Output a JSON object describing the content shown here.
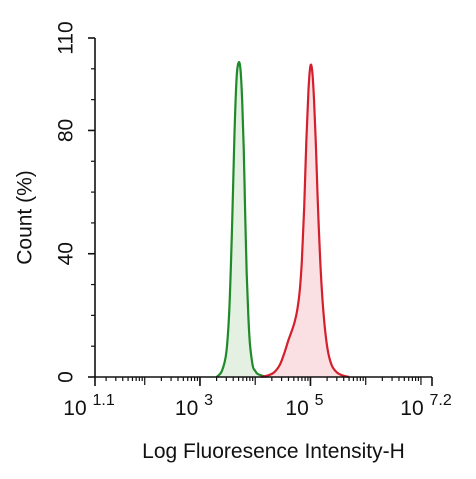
{
  "chart_data": {
    "type": "area",
    "title": "",
    "xlabel": "Log Fluoresence Intensity-H",
    "ylabel": "Count  (%)",
    "x_scale": "log",
    "xlim": [
      12.59,
      15848932
    ],
    "ylim": [
      0,
      110
    ],
    "x_ticks": [
      {
        "base": "10",
        "exp": "1.1",
        "value": 12.59
      },
      {
        "base": "10",
        "exp": "3",
        "value": 1000
      },
      {
        "base": "10",
        "exp": "5",
        "value": 100000
      },
      {
        "base": "10",
        "exp": "7.2",
        "value": 15848932
      }
    ],
    "y_ticks": [
      {
        "label": "0",
        "value": 0
      },
      {
        "label": "40",
        "value": 40
      },
      {
        "label": "80",
        "value": 80
      },
      {
        "label": "110",
        "value": 110
      }
    ],
    "grid": false,
    "legend": "none",
    "series": [
      {
        "line_color": "#1f8a2a",
        "fill_color": "#e4f0e1",
        "x": [
          2000,
          2500,
          3000,
          3400,
          3800,
          4200,
          4600,
          5000,
          5400,
          5800,
          6200,
          6600,
          7000,
          7500,
          8000,
          8600,
          9200,
          10000,
          11000,
          13000,
          16000
        ],
        "y": [
          0,
          2,
          8,
          22,
          48,
          78,
          97,
          102,
          100,
          90,
          74,
          52,
          34,
          20,
          11,
          6,
          3,
          2,
          1,
          0.5,
          0
        ]
      },
      {
        "line_color": "#d41f2c",
        "fill_color": "#fbe0e3",
        "x": [
          13000,
          17000,
          22000,
          28000,
          34000,
          40000,
          46000,
          52000,
          58000,
          64000,
          70000,
          77000,
          84000,
          92000,
          100000,
          108000,
          116000,
          125000,
          135000,
          150000,
          170000,
          200000,
          240000,
          300000,
          380000,
          500000
        ],
        "y": [
          0,
          0.5,
          1.5,
          4,
          8,
          12,
          15,
          18,
          22,
          28,
          38,
          55,
          76,
          93,
          101,
          99,
          90,
          76,
          58,
          38,
          22,
          10,
          4,
          1.5,
          0.5,
          0
        ]
      }
    ]
  }
}
